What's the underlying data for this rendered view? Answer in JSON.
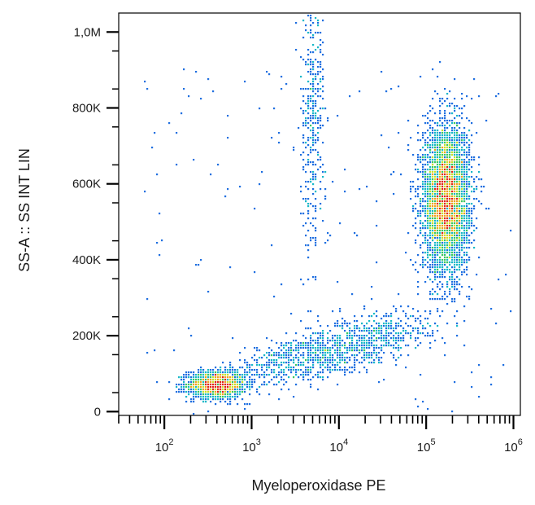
{
  "chart_data": {
    "type": "scatter",
    "style": "flow-cytometry density dot plot",
    "title": "",
    "xlabel": "Myeloperoxidase PE",
    "ylabel": "SS-A :: SS INT LIN",
    "x_scale": "log",
    "y_scale": "linear",
    "xlim": [
      30,
      1200000
    ],
    "ylim": [
      -10000,
      1050000
    ],
    "x_ticks": [
      {
        "value": 100,
        "base": "10",
        "exp": "2"
      },
      {
        "value": 1000,
        "base": "10",
        "exp": "3"
      },
      {
        "value": 10000,
        "base": "10",
        "exp": "4"
      },
      {
        "value": 100000,
        "base": "10",
        "exp": "5"
      },
      {
        "value": 1000000,
        "base": "10",
        "exp": "6"
      }
    ],
    "y_ticks": [
      {
        "value": 0,
        "label": "0"
      },
      {
        "value": 200000,
        "label": "200K"
      },
      {
        "value": 400000,
        "label": "400K"
      },
      {
        "value": 600000,
        "label": "600K"
      },
      {
        "value": 800000,
        "label": "800K"
      },
      {
        "value": 1000000,
        "label": "1,0M"
      }
    ],
    "grid": false,
    "legend": "none",
    "colormap": [
      "#1a1acc",
      "#1f6fe0",
      "#18b8c8",
      "#3cc860",
      "#c8e02a",
      "#f0a020",
      "#e02818"
    ],
    "populations": [
      {
        "x_center": 400,
        "y_center": 70000,
        "x_spread_log": 0.17,
        "y_spread": 18000,
        "count": 1500
      },
      {
        "x_center": 170000,
        "y_center": 560000,
        "x_spread_log": 0.13,
        "y_spread": 95000,
        "count": 4800
      },
      {
        "x_start": 1500,
        "x_end": 60000,
        "y_start": 110000,
        "y_end": 220000,
        "x_spread_log": 0.25,
        "y_spread": 30000,
        "count": 1200
      },
      {
        "x_center": 5000,
        "y_center": 780000,
        "x_spread_log": 0.07,
        "y_spread": 180000,
        "count": 380
      }
    ]
  }
}
